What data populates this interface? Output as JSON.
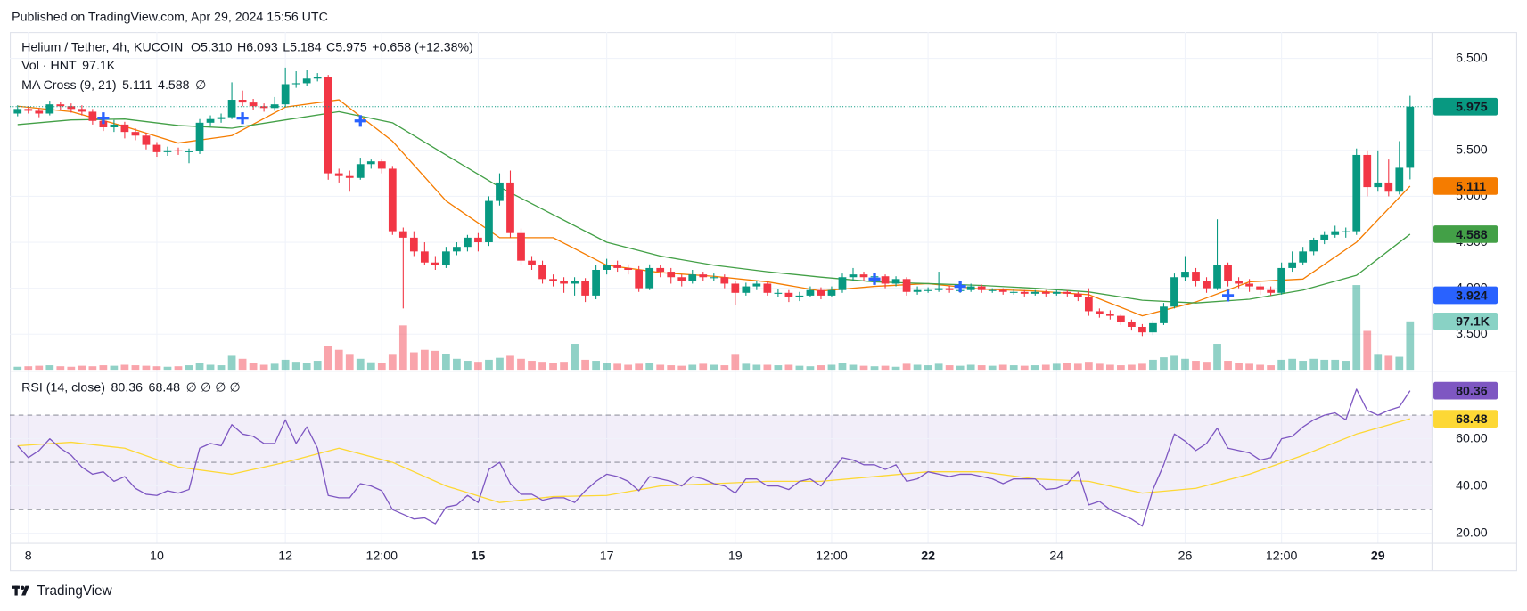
{
  "published": "Published on TradingView.com, Apr 29, 2024 15:56 UTC",
  "footer": "TradingView",
  "chart_data": {
    "type": "candlestick",
    "title": "Helium / Tether, 4h, KUCOIN",
    "ohlc_legend": [
      {
        "key": "O",
        "value": "5.310"
      },
      {
        "key": "H",
        "value": "6.093"
      },
      {
        "key": "L",
        "value": "5.184"
      },
      {
        "key": "C",
        "value": "5.975"
      }
    ],
    "change": "+0.658 (+12.38%)",
    "colors": {
      "up": "#089981",
      "down": "#f23645"
    },
    "grid": true,
    "ylim": [
      3.114,
      6.786
    ],
    "yticks": [
      {
        "value": 3.5,
        "label": "3.500"
      },
      {
        "value": 4.0,
        "label": "4.000"
      },
      {
        "value": 4.5,
        "label": "4.500"
      },
      {
        "value": 5.0,
        "label": "5.000"
      },
      {
        "value": 5.5,
        "label": "5.500"
      },
      {
        "value": 6.5,
        "label": "6.500"
      }
    ],
    "xticks": [
      {
        "value": 1,
        "label": "8"
      },
      {
        "value": 13,
        "label": "10"
      },
      {
        "value": 25,
        "label": "12"
      },
      {
        "value": 34,
        "label": "12:00"
      },
      {
        "value": 43,
        "label": "15"
      },
      {
        "value": 55,
        "label": "17"
      },
      {
        "value": 67,
        "label": "19"
      },
      {
        "value": 76,
        "label": "12:00"
      },
      {
        "value": 85,
        "label": "22"
      },
      {
        "value": 97,
        "label": "24"
      },
      {
        "value": 109,
        "label": "26"
      },
      {
        "value": 118,
        "label": "12:00"
      },
      {
        "value": 127,
        "label": "29"
      }
    ],
    "bold_xticks": [
      4,
      8,
      12
    ],
    "candles": [
      [
        5.9,
        5.99,
        5.87,
        5.95
      ],
      [
        5.95,
        5.98,
        5.9,
        5.93
      ],
      [
        5.93,
        5.96,
        5.86,
        5.9
      ],
      [
        5.9,
        6.04,
        5.88,
        6.0
      ],
      [
        6.0,
        6.03,
        5.94,
        5.98
      ],
      [
        5.98,
        6.01,
        5.91,
        5.95
      ],
      [
        5.95,
        5.99,
        5.88,
        5.92
      ],
      [
        5.92,
        5.95,
        5.78,
        5.82
      ],
      [
        5.82,
        5.86,
        5.71,
        5.75
      ],
      [
        5.75,
        5.83,
        5.7,
        5.78
      ],
      [
        5.78,
        5.81,
        5.63,
        5.7
      ],
      [
        5.7,
        5.74,
        5.61,
        5.66
      ],
      [
        5.66,
        5.69,
        5.51,
        5.56
      ],
      [
        5.56,
        5.59,
        5.43,
        5.48
      ],
      [
        5.48,
        5.54,
        5.44,
        5.5
      ],
      [
        5.5,
        5.53,
        5.45,
        5.49
      ],
      [
        5.49,
        5.52,
        5.36,
        5.49
      ],
      [
        5.49,
        5.84,
        5.46,
        5.8
      ],
      [
        5.8,
        5.88,
        5.77,
        5.84
      ],
      [
        5.84,
        5.9,
        5.8,
        5.86
      ],
      [
        5.86,
        6.24,
        5.84,
        6.05
      ],
      [
        6.05,
        6.15,
        5.98,
        6.02
      ],
      [
        6.02,
        6.06,
        5.94,
        5.98
      ],
      [
        5.98,
        6.01,
        5.92,
        5.96
      ],
      [
        5.96,
        6.08,
        5.93,
        6.0
      ],
      [
        6.0,
        6.4,
        5.97,
        6.22
      ],
      [
        6.22,
        6.36,
        6.18,
        6.23
      ],
      [
        6.23,
        6.37,
        6.2,
        6.28
      ],
      [
        6.28,
        6.34,
        6.25,
        6.3
      ],
      [
        6.3,
        6.32,
        5.18,
        5.25
      ],
      [
        5.25,
        5.3,
        5.15,
        5.22
      ],
      [
        5.22,
        5.28,
        5.05,
        5.2
      ],
      [
        5.2,
        5.42,
        5.18,
        5.35
      ],
      [
        5.35,
        5.4,
        5.3,
        5.38
      ],
      [
        5.38,
        5.41,
        5.25,
        5.3
      ],
      [
        5.3,
        5.33,
        4.58,
        4.62
      ],
      [
        4.62,
        4.66,
        3.78,
        4.55
      ],
      [
        4.55,
        4.62,
        4.35,
        4.4
      ],
      [
        4.4,
        4.5,
        4.25,
        4.28
      ],
      [
        4.28,
        4.35,
        4.2,
        4.25
      ],
      [
        4.25,
        4.45,
        4.22,
        4.4
      ],
      [
        4.4,
        4.5,
        4.36,
        4.45
      ],
      [
        4.45,
        4.58,
        4.4,
        4.55
      ],
      [
        4.55,
        4.6,
        4.4,
        4.5
      ],
      [
        4.5,
        5.0,
        4.46,
        4.95
      ],
      [
        4.95,
        5.25,
        4.9,
        5.15
      ],
      [
        5.15,
        5.28,
        4.55,
        4.6
      ],
      [
        4.6,
        4.65,
        4.25,
        4.3
      ],
      [
        4.3,
        4.35,
        4.2,
        4.25
      ],
      [
        4.25,
        4.3,
        4.05,
        4.1
      ],
      [
        4.1,
        4.15,
        4.02,
        4.08
      ],
      [
        4.08,
        4.12,
        3.95,
        4.05
      ],
      [
        4.05,
        4.12,
        3.92,
        4.08
      ],
      [
        4.08,
        4.11,
        3.85,
        3.92
      ],
      [
        3.92,
        4.25,
        3.88,
        4.2
      ],
      [
        4.2,
        4.32,
        4.15,
        4.25
      ],
      [
        4.25,
        4.3,
        4.18,
        4.22
      ],
      [
        4.22,
        4.26,
        4.15,
        4.2
      ],
      [
        4.2,
        4.24,
        3.96,
        4.0
      ],
      [
        4.0,
        4.26,
        3.98,
        4.22
      ],
      [
        4.22,
        4.25,
        4.12,
        4.18
      ],
      [
        4.18,
        4.22,
        4.05,
        4.12
      ],
      [
        4.12,
        4.15,
        4.02,
        4.08
      ],
      [
        4.08,
        4.2,
        4.05,
        4.15
      ],
      [
        4.15,
        4.18,
        4.08,
        4.12
      ],
      [
        4.12,
        4.16,
        4.08,
        4.12
      ],
      [
        4.12,
        4.15,
        4.0,
        4.05
      ],
      [
        4.05,
        4.08,
        3.82,
        3.95
      ],
      [
        3.95,
        4.06,
        3.92,
        4.02
      ],
      [
        4.02,
        4.08,
        3.98,
        4.05
      ],
      [
        4.05,
        4.08,
        3.92,
        3.95
      ],
      [
        3.95,
        3.99,
        3.9,
        3.95
      ],
      [
        3.95,
        3.98,
        3.85,
        3.9
      ],
      [
        3.9,
        3.96,
        3.86,
        3.92
      ],
      [
        3.92,
        4.02,
        3.9,
        3.98
      ],
      [
        3.98,
        4.01,
        3.88,
        3.92
      ],
      [
        3.92,
        4.02,
        3.9,
        3.98
      ],
      [
        3.98,
        4.16,
        3.95,
        4.12
      ],
      [
        4.12,
        4.22,
        4.08,
        4.15
      ],
      [
        4.15,
        4.18,
        4.08,
        4.12
      ],
      [
        4.12,
        4.16,
        4.08,
        4.13
      ],
      [
        4.13,
        4.15,
        4.0,
        4.05
      ],
      [
        4.05,
        4.13,
        4.02,
        4.1
      ],
      [
        4.1,
        4.12,
        3.92,
        3.96
      ],
      [
        3.96,
        4.02,
        3.93,
        3.98
      ],
      [
        3.98,
        4.01,
        3.95,
        3.98
      ],
      [
        3.98,
        4.18,
        3.96,
        4.0
      ],
      [
        4.0,
        4.03,
        3.95,
        3.98
      ],
      [
        3.98,
        4.01,
        3.95,
        3.98
      ],
      [
        3.98,
        4.05,
        3.96,
        4.02
      ],
      [
        4.02,
        4.04,
        3.95,
        3.98
      ],
      [
        3.98,
        4.0,
        3.95,
        3.98
      ],
      [
        3.98,
        4.0,
        3.93,
        3.96
      ],
      [
        3.96,
        3.99,
        3.93,
        3.96
      ],
      [
        3.96,
        3.98,
        3.91,
        3.94
      ],
      [
        3.94,
        3.98,
        3.92,
        3.96
      ],
      [
        3.96,
        3.98,
        3.91,
        3.94
      ],
      [
        3.94,
        3.98,
        3.92,
        3.96
      ],
      [
        3.96,
        3.98,
        3.91,
        3.94
      ],
      [
        3.94,
        3.96,
        3.86,
        3.9
      ],
      [
        3.9,
        4.0,
        3.7,
        3.75
      ],
      [
        3.75,
        3.78,
        3.68,
        3.72
      ],
      [
        3.72,
        3.76,
        3.66,
        3.7
      ],
      [
        3.7,
        3.72,
        3.6,
        3.63
      ],
      [
        3.63,
        3.66,
        3.54,
        3.58
      ],
      [
        3.58,
        3.61,
        3.48,
        3.52
      ],
      [
        3.52,
        3.65,
        3.49,
        3.62
      ],
      [
        3.62,
        3.84,
        3.6,
        3.8
      ],
      [
        3.8,
        4.16,
        3.78,
        4.12
      ],
      [
        4.12,
        4.35,
        4.08,
        4.18
      ],
      [
        4.18,
        4.22,
        4.02,
        4.08
      ],
      [
        4.08,
        4.12,
        3.95,
        4.0
      ],
      [
        4.0,
        4.75,
        3.98,
        4.25
      ],
      [
        4.25,
        4.28,
        4.02,
        4.08
      ],
      [
        4.08,
        4.12,
        4.0,
        4.05
      ],
      [
        4.05,
        4.1,
        3.96,
        4.02
      ],
      [
        4.02,
        4.05,
        3.93,
        3.98
      ],
      [
        3.98,
        4.02,
        3.92,
        3.95
      ],
      [
        3.95,
        4.28,
        3.93,
        4.22
      ],
      [
        4.22,
        4.4,
        4.18,
        4.28
      ],
      [
        4.28,
        4.45,
        4.25,
        4.4
      ],
      [
        4.4,
        4.55,
        4.36,
        4.52
      ],
      [
        4.52,
        4.62,
        4.48,
        4.58
      ],
      [
        4.58,
        4.68,
        4.55,
        4.62
      ],
      [
        4.62,
        4.66,
        4.55,
        4.62
      ],
      [
        4.62,
        5.52,
        4.58,
        5.45
      ],
      [
        5.45,
        5.5,
        5.0,
        5.1
      ],
      [
        5.1,
        5.5,
        5.05,
        5.15
      ],
      [
        5.15,
        5.4,
        5.0,
        5.05
      ],
      [
        5.05,
        5.6,
        5.02,
        5.31
      ],
      [
        5.31,
        6.093,
        5.184,
        5.975
      ]
    ],
    "last_price_tag": {
      "value": 5.975,
      "label": "5.975",
      "color": "#089981"
    },
    "volume": {
      "name": "Vol · HNT",
      "tag": {
        "value": 97100,
        "label": "97.1K",
        "color": "#89d2c5"
      },
      "values": [
        6000,
        7000,
        8000,
        9000,
        7000,
        6000,
        8000,
        7000,
        9000,
        8000,
        10000,
        9000,
        8000,
        7000,
        6000,
        7000,
        9000,
        14000,
        10000,
        9000,
        28000,
        22000,
        14000,
        10000,
        12000,
        20000,
        16000,
        14000,
        18000,
        48000,
        40000,
        30000,
        22000,
        15000,
        14000,
        30000,
        89000,
        35000,
        40000,
        38000,
        32000,
        22000,
        18000,
        16000,
        20000,
        24000,
        28000,
        22000,
        18000,
        16000,
        14000,
        16000,
        52000,
        20000,
        18000,
        14000,
        12000,
        10000,
        12000,
        14000,
        10000,
        9000,
        8000,
        10000,
        12000,
        10000,
        9000,
        30000,
        12000,
        10000,
        10000,
        9000,
        10000,
        8000,
        7000,
        9000,
        10000,
        14000,
        10000,
        8000,
        7000,
        8000,
        6000,
        12000,
        10000,
        9000,
        12000,
        9000,
        8000,
        10000,
        9000,
        8000,
        10000,
        9000,
        8000,
        9000,
        10000,
        12000,
        14000,
        12000,
        16000,
        12000,
        10000,
        9000,
        10000,
        12000,
        20000,
        25000,
        28000,
        22000,
        18000,
        16000,
        52000,
        18000,
        14000,
        12000,
        10000,
        9000,
        20000,
        22000,
        18000,
        22000,
        20000,
        20000,
        18000,
        170000,
        78000,
        30000,
        28000,
        26000,
        97100
      ]
    },
    "ma_cross": {
      "name": "MA Cross (9, 21)",
      "suffix": "∅",
      "series": [
        {
          "color": "#f57c00",
          "tag": {
            "value": 5.111,
            "label": "5.111"
          },
          "x": [
            0,
            5,
            10,
            15,
            20,
            25,
            30,
            35,
            40,
            45,
            50,
            55,
            60,
            65,
            70,
            75,
            80,
            85,
            90,
            95,
            100,
            105,
            110,
            115,
            120,
            125,
            130
          ],
          "values": [
            5.98,
            5.92,
            5.76,
            5.58,
            5.66,
            5.97,
            6.05,
            5.6,
            4.95,
            4.55,
            4.55,
            4.25,
            4.17,
            4.13,
            4.07,
            3.97,
            4.02,
            4.05,
            3.99,
            3.97,
            3.93,
            3.7,
            3.85,
            4.07,
            4.1,
            4.5,
            5.111
          ]
        },
        {
          "color": "#43a047",
          "tag": {
            "value": 4.588,
            "label": "4.588"
          },
          "x": [
            0,
            5,
            10,
            15,
            20,
            25,
            30,
            35,
            40,
            45,
            50,
            55,
            60,
            65,
            70,
            75,
            80,
            85,
            90,
            95,
            100,
            105,
            110,
            115,
            120,
            125,
            130
          ],
          "values": [
            5.78,
            5.83,
            5.84,
            5.77,
            5.74,
            5.83,
            5.92,
            5.8,
            5.45,
            5.1,
            4.8,
            4.5,
            4.35,
            4.25,
            4.18,
            4.12,
            4.07,
            4.05,
            4.03,
            4.0,
            3.96,
            3.87,
            3.84,
            3.88,
            3.98,
            4.14,
            4.588
          ]
        }
      ],
      "crosses": {
        "color": "#2962ff",
        "x": [
          8,
          21,
          32,
          80,
          88,
          113
        ],
        "values": [
          5.85,
          5.85,
          5.82,
          4.1,
          4.02,
          3.92
        ]
      },
      "cross_tag": {
        "value": 3.924,
        "label": "3.924",
        "color": "#2962ff"
      }
    },
    "rsi": {
      "name": "RSI (14, close)",
      "suffix": "∅ ∅ ∅ ∅",
      "color": "#7e57c2",
      "ylim": [
        15.9,
        88
      ],
      "yticks": [
        {
          "value": 20,
          "label": "20.00"
        },
        {
          "value": 40,
          "label": "40.00"
        },
        {
          "value": 60,
          "label": "60.00"
        }
      ],
      "bands": [
        70,
        50,
        30
      ],
      "tag": {
        "value": 80.36,
        "label": "80.36"
      },
      "values": [
        57,
        52,
        55,
        60,
        56,
        53,
        48,
        45,
        46,
        42,
        44,
        39,
        36.5,
        36,
        38,
        37,
        38.5,
        56,
        58,
        57,
        66,
        62,
        61,
        58,
        58,
        68,
        58,
        65,
        56,
        36,
        35,
        35,
        41,
        40,
        38,
        30,
        28,
        26,
        26.5,
        24,
        31,
        32,
        36,
        33,
        47,
        50,
        41,
        36.5,
        36.5,
        34,
        35,
        35,
        33,
        38,
        42,
        45,
        44,
        42,
        38,
        44,
        43,
        42,
        40,
        44,
        43,
        41,
        40,
        37,
        43,
        43,
        40,
        40,
        38.5,
        42,
        43,
        40,
        46,
        52,
        51,
        49,
        49,
        47,
        49,
        42,
        43,
        46,
        45,
        44,
        45,
        45,
        44,
        43,
        41,
        43,
        43,
        43,
        38.5,
        39,
        41,
        46,
        32,
        33.5,
        30,
        28,
        26,
        23,
        38.5,
        49,
        62,
        59,
        55,
        58,
        64.5,
        56,
        55,
        54,
        51,
        52,
        60,
        61,
        65,
        68,
        70,
        71,
        68,
        81,
        72,
        70,
        72,
        73.5,
        80.36
      ],
      "ma": {
        "color": "#fdd835",
        "tag": {
          "value": 68.48,
          "label": "68.48"
        },
        "x": [
          0,
          5,
          10,
          15,
          20,
          25,
          30,
          35,
          40,
          45,
          50,
          55,
          60,
          65,
          70,
          75,
          80,
          85,
          90,
          95,
          100,
          105,
          110,
          115,
          120,
          125,
          130
        ],
        "values": [
          57,
          58.5,
          56,
          48,
          45,
          50,
          56,
          50,
          40,
          33,
          35.5,
          36,
          40,
          41,
          42,
          42,
          44,
          46,
          46,
          43,
          42,
          37,
          39,
          45,
          53,
          62,
          68.48
        ]
      }
    }
  }
}
